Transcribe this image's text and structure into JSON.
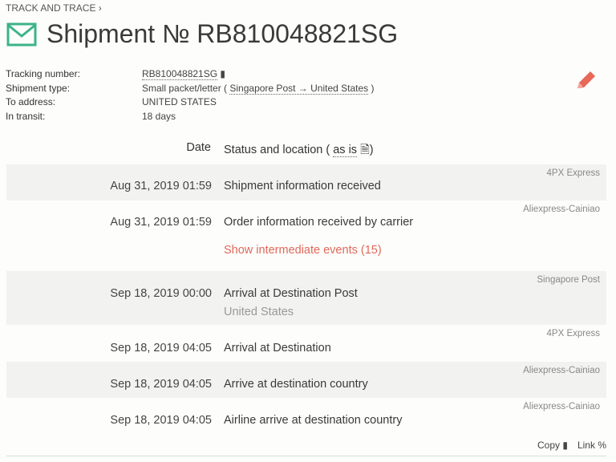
{
  "breadcrumb": "TRACK AND TRACE ›",
  "title": "Shipment № RB810048821SG",
  "accent": "#3cb38b",
  "info": {
    "tracking_label": "Tracking number:",
    "tracking_value": "RB810048821SG",
    "type_label": "Shipment type:",
    "type_value": "Small packet/letter (",
    "type_route": "Singapore Post → United States",
    "type_close": ")",
    "address_label": "To address:",
    "address_value": "UNITED STATES",
    "transit_label": "In transit:",
    "transit_value": "18 days"
  },
  "table": {
    "date_header": "Date",
    "status_header": "Status and location (",
    "as_is": "as is",
    "close": ")",
    "show_intermediate": "Show intermediate events (15)",
    "events": [
      {
        "date": "Aug 31, 2019 01:59",
        "status": "Shipment information received",
        "carrier": "4PX Express"
      },
      {
        "date": "Aug 31, 2019 01:59",
        "status": "Order information received by carrier",
        "carrier": "Aliexpress-Cainiao"
      },
      {
        "date": "Sep 18, 2019 00:00",
        "status": "Arrival at Destination Post",
        "location": "United States",
        "carrier": "Singapore Post"
      },
      {
        "date": "Sep 18, 2019 04:05",
        "status": "Arrival at Destination",
        "carrier": "4PX Express"
      },
      {
        "date": "Sep 18, 2019 04:05",
        "status": "Arrive at destination country",
        "carrier": "Aliexpress-Cainiao"
      },
      {
        "date": "Sep 18, 2019 04:05",
        "status": "Airline arrive at destination country",
        "carrier": "Aliexpress-Cainiao"
      }
    ]
  },
  "footer": {
    "copy": "Copy",
    "link": "Link"
  }
}
